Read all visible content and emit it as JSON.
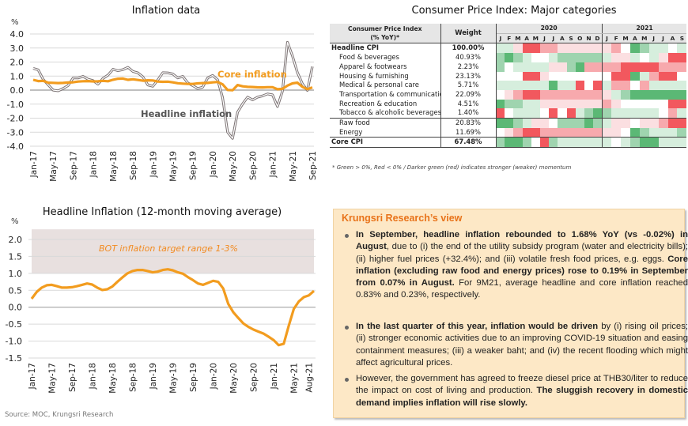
{
  "chart_data": [
    {
      "type": "line",
      "title": "Inflation data",
      "ylabel": "%",
      "ylim": [
        -4.0,
        4.0
      ],
      "yticks": [
        "4.0",
        "3.0",
        "2.0",
        "1.0",
        "0.0",
        "-1.0",
        "-2.0",
        "-3.0",
        "-4.0"
      ],
      "ytick_values": [
        4,
        3,
        2,
        1,
        0,
        -1,
        -2,
        -3,
        -4
      ],
      "xtick_labels": [
        "Jan-17",
        "May-17",
        "Sep-17",
        "Jan-18",
        "May-18",
        "Sep-18",
        "Jan-19",
        "May-19",
        "Sep-19",
        "Jan-20",
        "May-20",
        "Sep-20",
        "Jan-21",
        "May-21",
        "Sep-21"
      ],
      "x_start": "Jan-17",
      "x_end": "Sep-21",
      "grid": true,
      "series": [
        {
          "name": "Headline inflation",
          "annotation": "Headline inflation",
          "color": "#7a7172",
          "values": [
            1.55,
            1.44,
            0.76,
            0.38,
            0.0,
            -0.05,
            0.11,
            0.32,
            0.86,
            0.86,
            0.98,
            0.78,
            0.68,
            0.42,
            0.84,
            1.07,
            1.49,
            1.38,
            1.46,
            1.62,
            1.33,
            1.23,
            0.94,
            0.36,
            0.27,
            0.73,
            1.24,
            1.23,
            1.15,
            0.87,
            0.98,
            0.52,
            0.32,
            0.11,
            0.21,
            0.87,
            1.05,
            0.74,
            -0.54,
            -2.99,
            -3.44,
            -1.57,
            -0.98,
            -0.5,
            -0.7,
            -0.5,
            -0.41,
            -0.27,
            -0.34,
            -1.17,
            -0.08,
            3.41,
            2.44,
            1.25,
            0.45,
            -0.02,
            1.68
          ]
        },
        {
          "name": "Core inflation",
          "annotation": "Core inflation",
          "color": "#f29c1f",
          "values": [
            0.73,
            0.64,
            0.66,
            0.53,
            0.52,
            0.5,
            0.51,
            0.54,
            0.56,
            0.61,
            0.63,
            0.64,
            0.62,
            0.63,
            0.66,
            0.63,
            0.74,
            0.81,
            0.82,
            0.73,
            0.77,
            0.72,
            0.67,
            0.7,
            0.69,
            0.61,
            0.59,
            0.6,
            0.55,
            0.49,
            0.46,
            0.44,
            0.44,
            0.48,
            0.5,
            0.51,
            0.55,
            0.58,
            0.41,
            0.01,
            -0.01,
            0.36,
            0.27,
            0.23,
            0.22,
            0.2,
            0.19,
            0.21,
            0.21,
            0.06,
            0.09,
            0.32,
            0.48,
            0.53,
            0.23,
            0.07,
            0.19
          ]
        }
      ]
    },
    {
      "type": "line",
      "title": "Headline Inflation (12-month moving average)",
      "ylabel": "%",
      "ylim": [
        -1.5,
        2.0
      ],
      "yticks": [
        "2.0",
        "1.5",
        "1.0",
        "0.5",
        "0.0",
        "-0.5",
        "-1.0",
        "-1.5"
      ],
      "ytick_values": [
        2.0,
        1.5,
        1.0,
        0.5,
        0.0,
        -0.5,
        -1.0,
        -1.5
      ],
      "xtick_labels": [
        "Jan-17",
        "May-17",
        "Sep-17",
        "Jan-18",
        "May-18",
        "Sep-18",
        "Jan-19",
        "May-19",
        "Sep-19",
        "Jan-20",
        "May-20",
        "Sep-20",
        "Jan-21",
        "May-21",
        "Aug-21"
      ],
      "x_start": "Jan-17",
      "x_end": "Sep-21",
      "grid": true,
      "band": {
        "from": 1.0,
        "to": 3.0,
        "label": "BOT inflation target range 1-3%",
        "color": "#e8e0df",
        "label_color": "#f28a1f"
      },
      "series": [
        {
          "name": "Headline inflation 12-month moving average",
          "color": "#f29c1f",
          "values": [
            0.25,
            0.45,
            0.58,
            0.65,
            0.66,
            0.62,
            0.58,
            0.58,
            0.59,
            0.62,
            0.66,
            0.7,
            0.67,
            0.58,
            0.51,
            0.53,
            0.61,
            0.75,
            0.88,
            1.0,
            1.07,
            1.1,
            1.1,
            1.07,
            1.03,
            1.05,
            1.1,
            1.12,
            1.09,
            1.03,
            0.99,
            0.89,
            0.8,
            0.7,
            0.66,
            0.72,
            0.78,
            0.75,
            0.55,
            0.1,
            -0.15,
            -0.32,
            -0.48,
            -0.58,
            -0.66,
            -0.72,
            -0.78,
            -0.87,
            -0.97,
            -1.12,
            -1.08,
            -0.55,
            -0.05,
            0.17,
            0.3,
            0.35,
            0.48
          ]
        }
      ]
    },
    {
      "type": "heatmap",
      "title": "Consumer Price Index: Major categories",
      "header_label": [
        "Consumer Price Index",
        "(% YoY)*"
      ],
      "weight_header": "Weight",
      "years": [
        {
          "label": "2020",
          "months": [
            "J",
            "F",
            "M",
            "A",
            "M",
            "J",
            "J",
            "A",
            "S",
            "O",
            "N",
            "D"
          ]
        },
        {
          "label": "2021",
          "months": [
            "J",
            "F",
            "M",
            "A",
            "M",
            "J",
            "J",
            "A",
            "S"
          ]
        }
      ],
      "scale_note": "levels -3 (strong red, < 0%) to +3 (strong green, > 0%)",
      "rows": [
        {
          "name": "Headline CPI",
          "weight": "100.00%",
          "bold": true,
          "indent": false,
          "sep": false,
          "levels": [
            1,
            1,
            -1,
            -3,
            -3,
            -2,
            -2,
            -1,
            -1,
            -1,
            -1,
            -1,
            -1,
            -2,
            0,
            3,
            2,
            1,
            1,
            0,
            1
          ]
        },
        {
          "name": "Food & beverages",
          "weight": "40.93%",
          "bold": false,
          "indent": true,
          "sep": false,
          "levels": [
            2,
            3,
            2,
            1,
            0,
            0,
            1,
            2,
            2,
            2,
            2,
            2,
            1,
            -1,
            -1,
            1,
            0,
            1,
            -1,
            -3,
            -3
          ]
        },
        {
          "name": "Apparel & footwears",
          "weight": "2.23%",
          "bold": false,
          "indent": true,
          "sep": false,
          "levels": [
            2,
            0,
            1,
            1,
            1,
            1,
            -1,
            -1,
            2,
            3,
            -2,
            -2,
            -2,
            -2,
            -3,
            -3,
            -3,
            -3,
            -2,
            -2,
            -2
          ]
        },
        {
          "name": "Housing & furnishing",
          "weight": "23.13%",
          "bold": false,
          "indent": true,
          "sep": false,
          "levels": [
            0,
            0,
            0,
            -3,
            -3,
            -1,
            0,
            0,
            0,
            0,
            0,
            0,
            0,
            -3,
            -3,
            3,
            1,
            -2,
            -3,
            -3,
            0
          ]
        },
        {
          "name": "Medical & personal care",
          "weight": "5.71%",
          "bold": false,
          "indent": true,
          "sep": false,
          "levels": [
            1,
            1,
            1,
            1,
            1,
            1,
            3,
            1,
            1,
            -3,
            0,
            -3,
            1,
            -2,
            -2,
            0,
            -2,
            1,
            1,
            1,
            1
          ]
        },
        {
          "name": "Transportation & communication",
          "weight": "22.09%",
          "bold": false,
          "indent": true,
          "sep": false,
          "levels": [
            0,
            -1,
            -2,
            -3,
            -3,
            -2,
            -2,
            -2,
            -2,
            -2,
            -2,
            -2,
            -1,
            1,
            2,
            3,
            3,
            3,
            3,
            3,
            3
          ]
        },
        {
          "name": "Recreation & education",
          "weight": "4.51%",
          "bold": false,
          "indent": true,
          "sep": false,
          "levels": [
            3,
            2,
            2,
            1,
            1,
            -1,
            -1,
            -1,
            -1,
            -1,
            -1,
            -1,
            -2,
            -1,
            0,
            0,
            0,
            0,
            0,
            -3,
            -3
          ]
        },
        {
          "name": "Tobacco & alcoholic beverages",
          "weight": "1.40%",
          "bold": false,
          "indent": true,
          "sep": false,
          "levels": [
            -3,
            0,
            1,
            1,
            1,
            0,
            -3,
            0,
            -3,
            1,
            2,
            3,
            2,
            1,
            1,
            1,
            1,
            1,
            0,
            -2,
            1
          ]
        },
        {
          "name": "Raw food",
          "weight": "20.83%",
          "bold": false,
          "indent": true,
          "sep": true,
          "levels": [
            3,
            3,
            2,
            1,
            -1,
            -1,
            0,
            2,
            2,
            2,
            3,
            2,
            1,
            -1,
            -1,
            0,
            -1,
            -1,
            -2,
            -3,
            -3
          ]
        },
        {
          "name": "Energy",
          "weight": "11.69%",
          "bold": false,
          "indent": true,
          "sep": false,
          "levels": [
            0,
            -1,
            -2,
            -3,
            -3,
            -2,
            -2,
            -2,
            -2,
            -2,
            -2,
            -2,
            -1,
            -1,
            0,
            3,
            2,
            1,
            1,
            1,
            2
          ]
        },
        {
          "name": "Core CPI",
          "weight": "67.48%",
          "bold": true,
          "indent": false,
          "sep": true,
          "levels": [
            2,
            3,
            3,
            2,
            0,
            -3,
            2,
            1,
            1,
            1,
            1,
            1,
            1,
            0,
            1,
            2,
            3,
            3,
            1,
            1,
            1
          ]
        }
      ],
      "footnote": "* Green > 0%, Red < 0% / Darker green (red) indicates stronger (weaker) momentum"
    }
  ],
  "view": {
    "title": "Krungsri Research’s view",
    "bullets": [
      [
        {
          "b": true,
          "t": "In September, headline inflation rebounded to 1.68% YoY (vs -0.02%) in August"
        },
        {
          "b": false,
          "t": ", due to (i) the end of the utility subsidy program (water and electricity bills); (ii) higher fuel prices (+32.4%); and (iii) volatile fresh food prices, e.g. eggs. "
        },
        {
          "b": true,
          "t": "Core inflation (excluding raw food and energy prices) rose to 0.19% in September from 0.07% in August."
        },
        {
          "b": false,
          "t": " For 9M21, average headline and core inflation reached 0.83% and 0.23%, respectively."
        }
      ],
      [
        {
          "b": true,
          "t": "In the last quarter of this year, inflation would be driven"
        },
        {
          "b": false,
          "t": " by (i) rising oil prices; (ii) stronger economic activities due to an improving COVID-19 situation and easing containment measures; (iii) a weaker baht; and (iv) the recent flooding which might affect agricultural prices."
        }
      ],
      [
        {
          "b": false,
          "t": "However, the government has agreed to freeze diesel price at THB30/liter to reduce the impact on cost of living and production. "
        },
        {
          "b": true,
          "t": "The sluggish recovery in domestic demand implies inflation will rise slowly."
        }
      ]
    ]
  },
  "source": "Source: MOC, Krungsri Research",
  "colors": {
    "heat_pos": [
      "#ffffff",
      "#d6eedd",
      "#9fd4af",
      "#5bb875"
    ],
    "heat_neg": [
      "#ffffff",
      "#fbdfe1",
      "#f7a9ad",
      "#f2585e"
    ]
  }
}
